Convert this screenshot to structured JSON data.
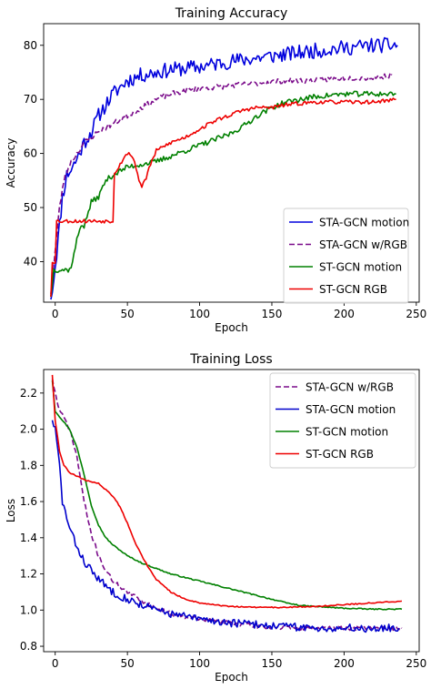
{
  "chart_data": [
    {
      "type": "line",
      "title": "Training Accuracy",
      "xlabel": "Epoch",
      "ylabel": "Accuracy",
      "xlim": [
        -8,
        252
      ],
      "ylim": [
        32.5,
        84
      ],
      "xticks": [
        0,
        50,
        100,
        150,
        200,
        250
      ],
      "yticks": [
        40,
        50,
        60,
        70,
        80
      ],
      "tick_labels_x": [
        "0",
        "50",
        "100",
        "150",
        "200",
        "250"
      ],
      "tick_labels_y": [
        "40",
        "50",
        "60",
        "70",
        "80"
      ],
      "legend": "bottom-right",
      "grid": false,
      "series": [
        {
          "name": "STA-GCN motion",
          "color": "#0000dd",
          "style": "solid",
          "noise": 1.4,
          "seed": 11,
          "points": [
            [
              -3,
              33
            ],
            [
              -1,
              37
            ],
            [
              2,
              44
            ],
            [
              5,
              52
            ],
            [
              8,
              56
            ],
            [
              12,
              57.5
            ],
            [
              15,
              59
            ],
            [
              20,
              62
            ],
            [
              25,
              64
            ],
            [
              30,
              67
            ],
            [
              35,
              69
            ],
            [
              40,
              71
            ],
            [
              50,
              73.5
            ],
            [
              60,
              74.5
            ],
            [
              80,
              75.5
            ],
            [
              100,
              76
            ],
            [
              120,
              77
            ],
            [
              150,
              78
            ],
            [
              180,
              79
            ],
            [
              200,
              79.5
            ],
            [
              220,
              80
            ],
            [
              237,
              80
            ]
          ]
        },
        {
          "name": "STA-GCN w/RGB",
          "color": "#7a0a8a",
          "style": "dashed",
          "noise": 0.5,
          "seed": 23,
          "points": [
            [
              -3,
              34
            ],
            [
              0,
              42
            ],
            [
              3,
              50
            ],
            [
              6,
              55
            ],
            [
              10,
              58
            ],
            [
              15,
              60
            ],
            [
              20,
              62
            ],
            [
              30,
              64
            ],
            [
              40,
              65.5
            ],
            [
              50,
              67
            ],
            [
              60,
              68.5
            ],
            [
              70,
              70
            ],
            [
              80,
              71
            ],
            [
              90,
              71.5
            ],
            [
              100,
              72
            ],
            [
              120,
              72.5
            ],
            [
              140,
              73
            ],
            [
              160,
              73.5
            ],
            [
              180,
              73.5
            ],
            [
              200,
              74
            ],
            [
              220,
              74
            ],
            [
              233,
              74.5
            ]
          ]
        },
        {
          "name": "ST-GCN motion",
          "color": "#008000",
          "style": "solid",
          "noise": 0.5,
          "seed": 37,
          "points": [
            [
              -3,
              33.5
            ],
            [
              -1,
              38.5
            ],
            [
              10,
              38.5
            ],
            [
              12,
              40
            ],
            [
              15,
              44
            ],
            [
              18,
              47
            ],
            [
              20,
              46.5
            ],
            [
              25,
              51
            ],
            [
              30,
              52
            ],
            [
              35,
              55
            ],
            [
              40,
              56
            ],
            [
              50,
              57.5
            ],
            [
              60,
              58
            ],
            [
              70,
              58.5
            ],
            [
              80,
              59.5
            ],
            [
              90,
              60.5
            ],
            [
              100,
              61.5
            ],
            [
              110,
              62.5
            ],
            [
              120,
              63.5
            ],
            [
              130,
              65
            ],
            [
              140,
              67
            ],
            [
              150,
              68.5
            ],
            [
              160,
              69.5
            ],
            [
              180,
              70.5
            ],
            [
              200,
              71
            ],
            [
              220,
              71
            ],
            [
              236,
              71
            ]
          ]
        },
        {
          "name": "ST-GCN RGB",
          "color": "#ee0000",
          "style": "solid",
          "noise": 0.35,
          "seed": 53,
          "points": [
            [
              -3,
              33.5
            ],
            [
              -2,
              40
            ],
            [
              0,
              40
            ],
            [
              0,
              47.5
            ],
            [
              40,
              47.5
            ],
            [
              40,
              56
            ],
            [
              45,
              58
            ],
            [
              48,
              59.5
            ],
            [
              52,
              60
            ],
            [
              55,
              58.5
            ],
            [
              58,
              55
            ],
            [
              60,
              54
            ],
            [
              63,
              55.5
            ],
            [
              66,
              58
            ],
            [
              70,
              60.5
            ],
            [
              80,
              62
            ],
            [
              90,
              63
            ],
            [
              100,
              64.5
            ],
            [
              110,
              66
            ],
            [
              120,
              67
            ],
            [
              130,
              68
            ],
            [
              140,
              68.5
            ],
            [
              150,
              68.5
            ],
            [
              160,
              69
            ],
            [
              180,
              69.5
            ],
            [
              200,
              69.5
            ],
            [
              220,
              69.5
            ],
            [
              236,
              70
            ]
          ]
        }
      ]
    },
    {
      "type": "line",
      "title": "Training Loss",
      "xlabel": "Epoch",
      "ylabel": "Loss",
      "xlim": [
        -8,
        252
      ],
      "ylim": [
        0.77,
        2.33
      ],
      "xticks": [
        0,
        50,
        100,
        150,
        200,
        250
      ],
      "yticks": [
        0.8,
        1.0,
        1.2,
        1.4,
        1.6,
        1.8,
        2.0,
        2.2
      ],
      "tick_labels_x": [
        "0",
        "50",
        "100",
        "150",
        "200",
        "250"
      ],
      "tick_labels_y": [
        "0.8",
        "1.0",
        "1.2",
        "1.4",
        "1.6",
        "1.8",
        "2.0",
        "2.2"
      ],
      "legend": "top-right",
      "grid": false,
      "series": [
        {
          "name": "STA-GCN w/RGB",
          "color": "#7a0a8a",
          "style": "dashed",
          "noise": 0.012,
          "seed": 71,
          "points": [
            [
              -2,
              2.28
            ],
            [
              0,
              2.2
            ],
            [
              3,
              2.1
            ],
            [
              7,
              2.05
            ],
            [
              10,
              2.0
            ],
            [
              15,
              1.85
            ],
            [
              20,
              1.6
            ],
            [
              25,
              1.42
            ],
            [
              30,
              1.3
            ],
            [
              35,
              1.22
            ],
            [
              40,
              1.16
            ],
            [
              50,
              1.1
            ],
            [
              60,
              1.05
            ],
            [
              70,
              1.01
            ],
            [
              80,
              0.98
            ],
            [
              100,
              0.95
            ],
            [
              120,
              0.93
            ],
            [
              140,
              0.91
            ],
            [
              160,
              0.9
            ],
            [
              180,
              0.9
            ],
            [
              200,
              0.9
            ],
            [
              220,
              0.9
            ],
            [
              240,
              0.9
            ]
          ]
        },
        {
          "name": "STA-GCN motion",
          "color": "#0000cc",
          "style": "solid",
          "noise": 0.022,
          "seed": 83,
          "points": [
            [
              -2,
              2.05
            ],
            [
              0,
              2.0
            ],
            [
              3,
              1.8
            ],
            [
              5,
              1.6
            ],
            [
              10,
              1.45
            ],
            [
              15,
              1.35
            ],
            [
              20,
              1.27
            ],
            [
              30,
              1.17
            ],
            [
              40,
              1.1
            ],
            [
              50,
              1.06
            ],
            [
              60,
              1.03
            ],
            [
              70,
              1.0
            ],
            [
              80,
              0.98
            ],
            [
              100,
              0.95
            ],
            [
              120,
              0.93
            ],
            [
              140,
              0.92
            ],
            [
              160,
              0.91
            ],
            [
              180,
              0.9
            ],
            [
              200,
              0.9
            ],
            [
              220,
              0.9
            ],
            [
              238,
              0.9
            ]
          ]
        },
        {
          "name": "ST-GCN motion",
          "color": "#008000",
          "style": "solid",
          "noise": 0.003,
          "seed": 97,
          "points": [
            [
              -2,
              2.27
            ],
            [
              0,
              2.1
            ],
            [
              3,
              2.07
            ],
            [
              6,
              2.04
            ],
            [
              10,
              2.0
            ],
            [
              15,
              1.9
            ],
            [
              20,
              1.75
            ],
            [
              25,
              1.58
            ],
            [
              30,
              1.47
            ],
            [
              35,
              1.4
            ],
            [
              40,
              1.36
            ],
            [
              50,
              1.3
            ],
            [
              60,
              1.26
            ],
            [
              70,
              1.23
            ],
            [
              80,
              1.2
            ],
            [
              90,
              1.18
            ],
            [
              100,
              1.16
            ],
            [
              110,
              1.14
            ],
            [
              120,
              1.12
            ],
            [
              130,
              1.1
            ],
            [
              140,
              1.08
            ],
            [
              150,
              1.06
            ],
            [
              160,
              1.04
            ],
            [
              170,
              1.025
            ],
            [
              180,
              1.02
            ],
            [
              190,
              1.015
            ],
            [
              200,
              1.01
            ],
            [
              220,
              1.005
            ],
            [
              240,
              1.005
            ]
          ]
        },
        {
          "name": "ST-GCN RGB",
          "color": "#ee0000",
          "style": "solid",
          "noise": 0.003,
          "seed": 109,
          "points": [
            [
              -2,
              2.3
            ],
            [
              0,
              2.05
            ],
            [
              3,
              1.88
            ],
            [
              6,
              1.8
            ],
            [
              10,
              1.76
            ],
            [
              15,
              1.74
            ],
            [
              20,
              1.72
            ],
            [
              30,
              1.7
            ],
            [
              40,
              1.63
            ],
            [
              45,
              1.57
            ],
            [
              50,
              1.48
            ],
            [
              55,
              1.38
            ],
            [
              60,
              1.3
            ],
            [
              65,
              1.23
            ],
            [
              70,
              1.17
            ],
            [
              80,
              1.1
            ],
            [
              90,
              1.06
            ],
            [
              100,
              1.04
            ],
            [
              110,
              1.03
            ],
            [
              120,
              1.02
            ],
            [
              140,
              1.015
            ],
            [
              160,
              1.015
            ],
            [
              180,
              1.02
            ],
            [
              200,
              1.03
            ],
            [
              220,
              1.04
            ],
            [
              240,
              1.05
            ]
          ]
        }
      ]
    }
  ]
}
